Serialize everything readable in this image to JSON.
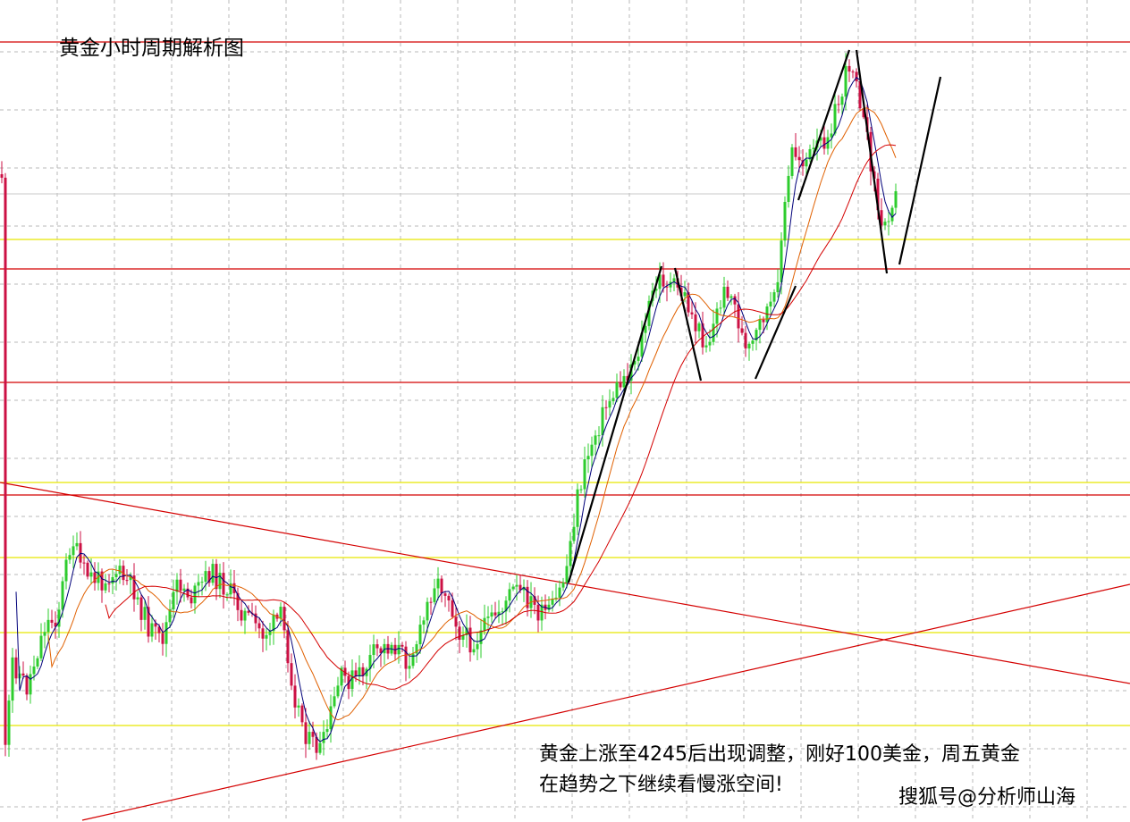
{
  "title": "黄金小时周期解析图",
  "annotation": {
    "line1": "黄金上涨至4245后出现调整，刚好100美金，周五黄金",
    "line2": "在趋势之下继续看慢涨空间!"
  },
  "watermark": "搜狐号@分析师山海",
  "chart_data": {
    "type": "candlestick",
    "timeframe": "1H",
    "price_scale": {
      "top": 4245,
      "red_line_mid": 4145,
      "note": "axis not printed"
    },
    "colors": {
      "bull": "#2ecc2e",
      "bear": "#cc1144",
      "level_red": "#d40000",
      "level_yellow": "#e8e800",
      "ma_fast": "#00007a",
      "ma_mid": "#e06000",
      "ma_slow": "#d40000",
      "trend": "#000000",
      "grid": "#b8b8b8"
    },
    "horizontal_levels": {
      "red": [
        "high 4245",
        "support 4145",
        "mid",
        "lower"
      ],
      "yellow": [
        "upper",
        "mid",
        "lower-1",
        "lower-2",
        "bottom"
      ]
    },
    "trendlines": [
      "descending red",
      "ascending red"
    ],
    "moving_averages": [
      "fast",
      "mid",
      "slow"
    ],
    "structure": {
      "segments": [
        {
          "from": "rally start",
          "to": "first peak"
        },
        {
          "from": "first peak",
          "to": "pullback low"
        },
        {
          "from": "pullback low",
          "to": "second leg"
        },
        {
          "from": "second leg",
          "to": "4245 high"
        },
        {
          "from": "4245 high",
          "to": "correction low"
        },
        {
          "from": "correction low",
          "to": "projected upside"
        }
      ]
    },
    "grid": true,
    "legend": "none"
  }
}
